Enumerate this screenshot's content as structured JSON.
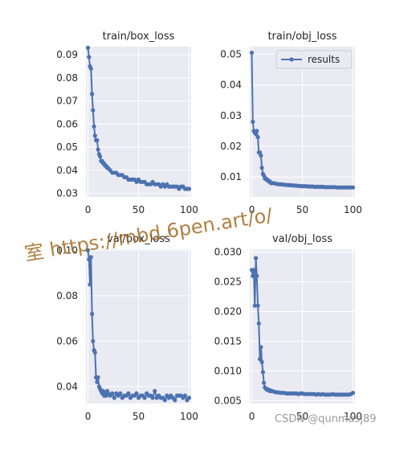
{
  "chart_data": [
    {
      "type": "line",
      "title": "train/box_loss",
      "xlim": [
        -2,
        102
      ],
      "ylim": [
        0.0285,
        0.0935
      ],
      "xticks": [
        0,
        50,
        100
      ],
      "yticks": [
        0.03,
        0.04,
        0.05,
        0.06,
        0.07,
        0.08,
        0.09
      ],
      "grid": true,
      "series": [
        {
          "x": [
            0,
            1,
            2,
            3,
            4,
            5,
            6,
            7,
            8,
            9,
            10,
            11,
            12,
            13,
            14,
            15,
            16,
            17,
            18,
            19,
            20,
            22,
            24,
            26,
            28,
            30,
            32,
            34,
            36,
            38,
            40,
            42,
            44,
            46,
            48,
            50,
            52,
            54,
            56,
            58,
            60,
            62,
            64,
            66,
            68,
            70,
            72,
            74,
            76,
            78,
            80,
            82,
            84,
            86,
            88,
            90,
            92,
            94,
            96,
            98,
            100
          ],
          "y": [
            0.093,
            0.089,
            0.085,
            0.084,
            0.073,
            0.066,
            0.059,
            0.055,
            0.053,
            0.053,
            0.049,
            0.047,
            0.046,
            0.044,
            0.044,
            0.043,
            0.043,
            0.042,
            0.042,
            0.041,
            0.041,
            0.04,
            0.039,
            0.039,
            0.039,
            0.038,
            0.038,
            0.038,
            0.037,
            0.037,
            0.036,
            0.036,
            0.036,
            0.036,
            0.035,
            0.036,
            0.035,
            0.035,
            0.035,
            0.034,
            0.034,
            0.034,
            0.035,
            0.034,
            0.034,
            0.034,
            0.033,
            0.034,
            0.033,
            0.034,
            0.033,
            0.033,
            0.033,
            0.033,
            0.033,
            0.032,
            0.033,
            0.033,
            0.032,
            0.032,
            0.032
          ]
        }
      ]
    },
    {
      "type": "line",
      "title": "train/obj_loss",
      "xlim": [
        -2,
        102
      ],
      "ylim": [
        0.0035,
        0.0525
      ],
      "xticks": [
        0,
        50,
        100
      ],
      "yticks": [
        0.01,
        0.02,
        0.03,
        0.04,
        0.05
      ],
      "grid": true,
      "legend": {
        "label": "results",
        "position": "top-right"
      },
      "series": [
        {
          "name": "results",
          "x": [
            0,
            1,
            2,
            3,
            4,
            5,
            6,
            7,
            8,
            9,
            10,
            11,
            12,
            13,
            14,
            15,
            16,
            17,
            18,
            19,
            20,
            22,
            24,
            26,
            28,
            30,
            32,
            34,
            36,
            38,
            40,
            42,
            44,
            46,
            48,
            50,
            52,
            54,
            56,
            58,
            60,
            62,
            64,
            66,
            68,
            70,
            72,
            74,
            76,
            78,
            80,
            82,
            84,
            86,
            88,
            90,
            92,
            94,
            96,
            98,
            100
          ],
          "y": [
            0.0505,
            0.028,
            0.025,
            0.0245,
            0.024,
            0.025,
            0.023,
            0.018,
            0.018,
            0.017,
            0.013,
            0.011,
            0.0105,
            0.0095,
            0.0095,
            0.009,
            0.009,
            0.0085,
            0.0085,
            0.008,
            0.008,
            0.008,
            0.0078,
            0.0077,
            0.0076,
            0.0076,
            0.0075,
            0.0074,
            0.0074,
            0.0073,
            0.0073,
            0.0072,
            0.0072,
            0.0071,
            0.0071,
            0.007,
            0.007,
            0.007,
            0.0069,
            0.0069,
            0.0069,
            0.0068,
            0.0068,
            0.0068,
            0.0068,
            0.0068,
            0.0067,
            0.0067,
            0.0067,
            0.0067,
            0.0067,
            0.0067,
            0.0066,
            0.0066,
            0.0066,
            0.0066,
            0.0066,
            0.0066,
            0.0066,
            0.0066,
            0.0066
          ]
        }
      ]
    },
    {
      "type": "line",
      "title": "val/box_loss",
      "xlim": [
        -2,
        102
      ],
      "ylim": [
        0.0325,
        0.1005
      ],
      "xticks": [
        0,
        50,
        100
      ],
      "yticks": [
        0.04,
        0.06,
        0.08,
        0.1
      ],
      "ytick_labels": [
        "0.04",
        "0.06",
        "0.08",
        "0.10"
      ],
      "grid": true,
      "series": [
        {
          "x": [
            0,
            1,
            2,
            3,
            4,
            5,
            6,
            7,
            8,
            9,
            10,
            11,
            12,
            13,
            14,
            15,
            16,
            17,
            18,
            19,
            20,
            22,
            24,
            26,
            28,
            30,
            32,
            34,
            36,
            38,
            40,
            42,
            44,
            46,
            48,
            50,
            52,
            54,
            56,
            58,
            60,
            62,
            64,
            66,
            68,
            70,
            72,
            74,
            76,
            78,
            80,
            82,
            84,
            86,
            88,
            90,
            92,
            94,
            96,
            98,
            100
          ],
          "y": [
            0.1,
            0.096,
            0.085,
            0.097,
            0.072,
            0.06,
            0.056,
            0.055,
            0.044,
            0.042,
            0.044,
            0.04,
            0.039,
            0.038,
            0.037,
            0.038,
            0.036,
            0.037,
            0.036,
            0.038,
            0.037,
            0.036,
            0.037,
            0.035,
            0.037,
            0.036,
            0.037,
            0.035,
            0.036,
            0.036,
            0.037,
            0.035,
            0.036,
            0.036,
            0.037,
            0.035,
            0.036,
            0.036,
            0.035,
            0.037,
            0.036,
            0.036,
            0.035,
            0.038,
            0.035,
            0.036,
            0.035,
            0.035,
            0.034,
            0.036,
            0.035,
            0.036,
            0.035,
            0.034,
            0.036,
            0.036,
            0.036,
            0.035,
            0.036,
            0.034,
            0.035
          ]
        }
      ]
    },
    {
      "type": "line",
      "title": "val/obj_loss",
      "xlim": [
        -2,
        102
      ],
      "ylim": [
        0.0045,
        0.0305
      ],
      "xticks": [
        0,
        50,
        100
      ],
      "yticks": [
        0.005,
        0.01,
        0.015,
        0.02,
        0.025,
        0.03
      ],
      "ytick_labels": [
        "0.005",
        "0.010",
        "0.015",
        "0.020",
        "0.025",
        "0.030"
      ],
      "grid": true,
      "series": [
        {
          "x": [
            0,
            1,
            2,
            3,
            4,
            5,
            6,
            7,
            8,
            9,
            10,
            11,
            12,
            13,
            14,
            15,
            16,
            17,
            18,
            19,
            20,
            22,
            24,
            26,
            28,
            30,
            32,
            34,
            36,
            38,
            40,
            42,
            44,
            46,
            48,
            50,
            52,
            54,
            56,
            58,
            60,
            62,
            64,
            66,
            68,
            70,
            72,
            74,
            76,
            78,
            80,
            82,
            84,
            86,
            88,
            90,
            92,
            94,
            96,
            98,
            100
          ],
          "y": [
            0.027,
            0.026,
            0.027,
            0.021,
            0.029,
            0.026,
            0.021,
            0.018,
            0.012,
            0.014,
            0.0115,
            0.0098,
            0.008,
            0.0072,
            0.007,
            0.0068,
            0.0069,
            0.0068,
            0.0066,
            0.0067,
            0.0066,
            0.0065,
            0.0064,
            0.0064,
            0.0063,
            0.0063,
            0.0063,
            0.0062,
            0.0062,
            0.0062,
            0.0062,
            0.0062,
            0.0062,
            0.0061,
            0.0062,
            0.0062,
            0.0061,
            0.0061,
            0.0061,
            0.0061,
            0.0061,
            0.0061,
            0.006,
            0.0061,
            0.006,
            0.0061,
            0.006,
            0.006,
            0.006,
            0.006,
            0.0061,
            0.006,
            0.006,
            0.006,
            0.006,
            0.006,
            0.006,
            0.006,
            0.006,
            0.0061,
            0.0063
          ]
        }
      ]
    }
  ],
  "watermark": {
    "text": "室 https://mbd.6pen.art/o/"
  },
  "credit": {
    "text": "CSDN @qunmasj89"
  },
  "colors": {
    "line": "#4c72b0",
    "panel": "#eaeaf2",
    "watermark": "#a26a1e"
  }
}
